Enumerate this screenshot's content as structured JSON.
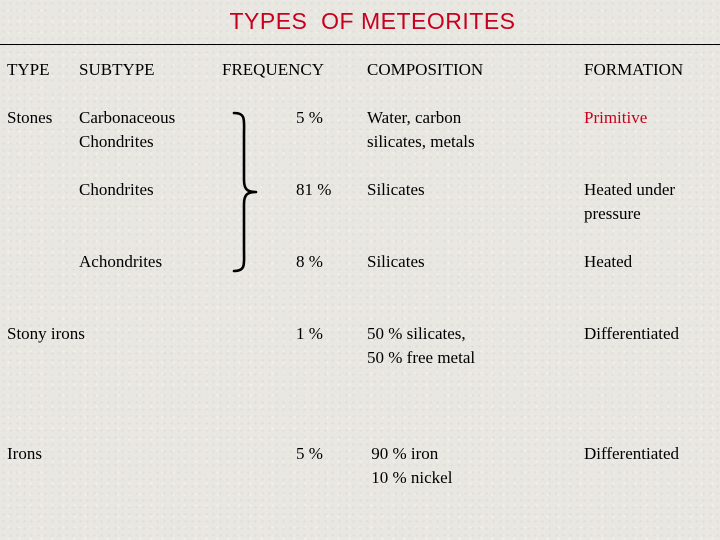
{
  "title": "TYPES  OF METEORITES",
  "headers": {
    "type": "TYPE",
    "subtype": "SUBTYPE",
    "frequency": "FREQUENCY",
    "composition": "COMPOSITION",
    "formation": "FORMATION"
  },
  "rows": [
    {
      "type": "Stones",
      "subtype": "Carbonaceous\nChondrites",
      "frequency": "5 %",
      "composition": "Water, carbon\nsilicates, metals",
      "formation": "Primitive",
      "formation_color": "#c8001e"
    },
    {
      "type": "",
      "subtype": "Chondrites",
      "frequency": "81 %",
      "composition": "Silicates",
      "formation": "Heated under\npressure"
    },
    {
      "type": "",
      "subtype": "Achondrites",
      "frequency": "8 %",
      "composition": "Silicates",
      "formation": "Heated"
    },
    {
      "type": "Stony irons",
      "subtype": "",
      "frequency": "1 %",
      "composition": "50 % silicates,\n50 % free metal",
      "formation": "Differentiated"
    },
    {
      "type": "Irons",
      "subtype": "",
      "frequency": "5 %",
      "composition": " 90 % iron\n 10 % nickel",
      "formation": "Differentiated"
    }
  ],
  "colors": {
    "title": "#c8001e",
    "primitive": "#c8001e",
    "background": "#e9e7e2"
  }
}
